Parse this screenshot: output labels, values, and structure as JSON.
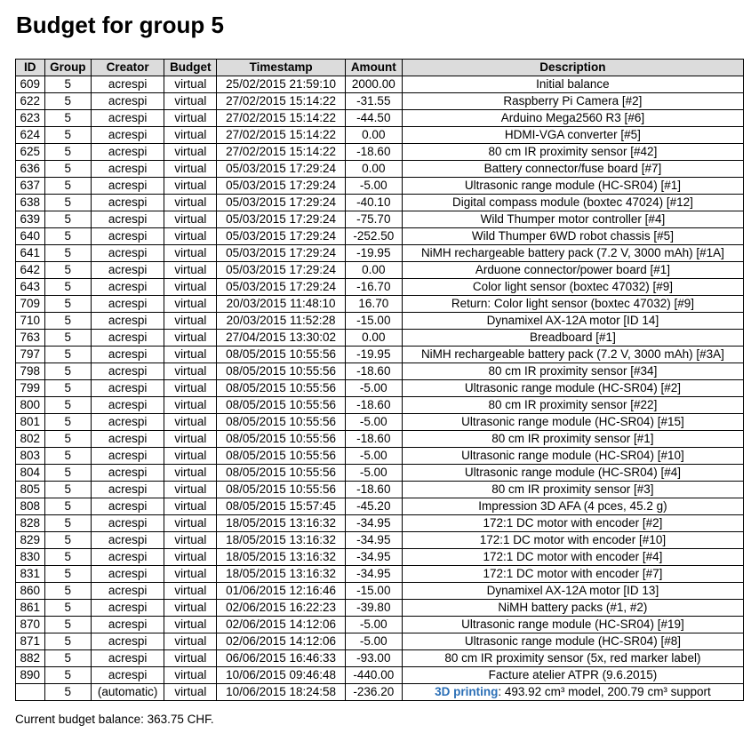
{
  "page": {
    "title": "Budget for group 5",
    "balance_text": "Current budget balance: 363.75 CHF."
  },
  "colors": {
    "link": "#2b6fb6",
    "header_bg": "#dcdcdc"
  },
  "table": {
    "headers": [
      "ID",
      "Group",
      "Creator",
      "Budget",
      "Timestamp",
      "Amount",
      "Description"
    ],
    "rows": [
      [
        "609",
        "5",
        "acrespi",
        "virtual",
        "25/02/2015 21:59:10",
        "2000.00",
        "Initial balance"
      ],
      [
        "622",
        "5",
        "acrespi",
        "virtual",
        "27/02/2015 15:14:22",
        "-31.55",
        "Raspberry Pi Camera [#2]"
      ],
      [
        "623",
        "5",
        "acrespi",
        "virtual",
        "27/02/2015 15:14:22",
        "-44.50",
        "Arduino Mega2560 R3 [#6]"
      ],
      [
        "624",
        "5",
        "acrespi",
        "virtual",
        "27/02/2015 15:14:22",
        "0.00",
        "HDMI-VGA converter [#5]"
      ],
      [
        "625",
        "5",
        "acrespi",
        "virtual",
        "27/02/2015 15:14:22",
        "-18.60",
        "80 cm IR proximity sensor [#42]"
      ],
      [
        "636",
        "5",
        "acrespi",
        "virtual",
        "05/03/2015 17:29:24",
        "0.00",
        "Battery connector/fuse board [#7]"
      ],
      [
        "637",
        "5",
        "acrespi",
        "virtual",
        "05/03/2015 17:29:24",
        "-5.00",
        "Ultrasonic range module (HC-SR04) [#1]"
      ],
      [
        "638",
        "5",
        "acrespi",
        "virtual",
        "05/03/2015 17:29:24",
        "-40.10",
        "Digital compass module (boxtec 47024) [#12]"
      ],
      [
        "639",
        "5",
        "acrespi",
        "virtual",
        "05/03/2015 17:29:24",
        "-75.70",
        "Wild Thumper motor controller [#4]"
      ],
      [
        "640",
        "5",
        "acrespi",
        "virtual",
        "05/03/2015 17:29:24",
        "-252.50",
        "Wild Thumper 6WD robot chassis [#5]"
      ],
      [
        "641",
        "5",
        "acrespi",
        "virtual",
        "05/03/2015 17:29:24",
        "-19.95",
        "NiMH rechargeable battery pack (7.2 V, 3000 mAh) [#1A]"
      ],
      [
        "642",
        "5",
        "acrespi",
        "virtual",
        "05/03/2015 17:29:24",
        "0.00",
        "Arduone connector/power board [#1]"
      ],
      [
        "643",
        "5",
        "acrespi",
        "virtual",
        "05/03/2015 17:29:24",
        "-16.70",
        "Color light sensor (boxtec 47032) [#9]"
      ],
      [
        "709",
        "5",
        "acrespi",
        "virtual",
        "20/03/2015 11:48:10",
        "16.70",
        "Return: Color light sensor (boxtec 47032) [#9]"
      ],
      [
        "710",
        "5",
        "acrespi",
        "virtual",
        "20/03/2015 11:52:28",
        "-15.00",
        "Dynamixel AX-12A motor [ID 14]"
      ],
      [
        "763",
        "5",
        "acrespi",
        "virtual",
        "27/04/2015 13:30:02",
        "0.00",
        "Breadboard [#1]"
      ],
      [
        "797",
        "5",
        "acrespi",
        "virtual",
        "08/05/2015 10:55:56",
        "-19.95",
        "NiMH rechargeable battery pack (7.2 V, 3000 mAh) [#3A]"
      ],
      [
        "798",
        "5",
        "acrespi",
        "virtual",
        "08/05/2015 10:55:56",
        "-18.60",
        "80 cm IR proximity sensor [#34]"
      ],
      [
        "799",
        "5",
        "acrespi",
        "virtual",
        "08/05/2015 10:55:56",
        "-5.00",
        "Ultrasonic range module (HC-SR04) [#2]"
      ],
      [
        "800",
        "5",
        "acrespi",
        "virtual",
        "08/05/2015 10:55:56",
        "-18.60",
        "80 cm IR proximity sensor [#22]"
      ],
      [
        "801",
        "5",
        "acrespi",
        "virtual",
        "08/05/2015 10:55:56",
        "-5.00",
        "Ultrasonic range module (HC-SR04) [#15]"
      ],
      [
        "802",
        "5",
        "acrespi",
        "virtual",
        "08/05/2015 10:55:56",
        "-18.60",
        "80 cm IR proximity sensor [#1]"
      ],
      [
        "803",
        "5",
        "acrespi",
        "virtual",
        "08/05/2015 10:55:56",
        "-5.00",
        "Ultrasonic range module (HC-SR04) [#10]"
      ],
      [
        "804",
        "5",
        "acrespi",
        "virtual",
        "08/05/2015 10:55:56",
        "-5.00",
        "Ultrasonic range module (HC-SR04) [#4]"
      ],
      [
        "805",
        "5",
        "acrespi",
        "virtual",
        "08/05/2015 10:55:56",
        "-18.60",
        "80 cm IR proximity sensor [#3]"
      ],
      [
        "808",
        "5",
        "acrespi",
        "virtual",
        "08/05/2015 15:57:45",
        "-45.20",
        "Impression 3D AFA (4 pces, 45.2 g)"
      ],
      [
        "828",
        "5",
        "acrespi",
        "virtual",
        "18/05/2015 13:16:32",
        "-34.95",
        "172:1 DC motor with encoder [#2]"
      ],
      [
        "829",
        "5",
        "acrespi",
        "virtual",
        "18/05/2015 13:16:32",
        "-34.95",
        "172:1 DC motor with encoder [#10]"
      ],
      [
        "830",
        "5",
        "acrespi",
        "virtual",
        "18/05/2015 13:16:32",
        "-34.95",
        "172:1 DC motor with encoder [#4]"
      ],
      [
        "831",
        "5",
        "acrespi",
        "virtual",
        "18/05/2015 13:16:32",
        "-34.95",
        "172:1 DC motor with encoder [#7]"
      ],
      [
        "860",
        "5",
        "acrespi",
        "virtual",
        "01/06/2015 12:16:46",
        "-15.00",
        "Dynamixel AX-12A motor [ID 13]"
      ],
      [
        "861",
        "5",
        "acrespi",
        "virtual",
        "02/06/2015 16:22:23",
        "-39.80",
        "NiMH battery packs (#1, #2)"
      ],
      [
        "870",
        "5",
        "acrespi",
        "virtual",
        "02/06/2015 14:12:06",
        "-5.00",
        "Ultrasonic range module (HC-SR04) [#19]"
      ],
      [
        "871",
        "5",
        "acrespi",
        "virtual",
        "02/06/2015 14:12:06",
        "-5.00",
        "Ultrasonic range module (HC-SR04) [#8]"
      ],
      [
        "882",
        "5",
        "acrespi",
        "virtual",
        "06/06/2015 16:46:33",
        "-93.00",
        "80 cm IR proximity sensor (5x, red marker label)"
      ],
      [
        "890",
        "5",
        "acrespi",
        "virtual",
        "10/06/2015 09:46:48",
        "-440.00",
        "Facture atelier ATPR (9.6.2015)"
      ]
    ],
    "last_row": {
      "id": "",
      "group": "5",
      "creator": "(automatic)",
      "budget": "virtual",
      "timestamp": "10/06/2015 18:24:58",
      "amount": "-236.20",
      "desc_link": "3D printing",
      "desc_rest": ": 493.92 cm³ model, 200.79 cm³ support"
    }
  }
}
